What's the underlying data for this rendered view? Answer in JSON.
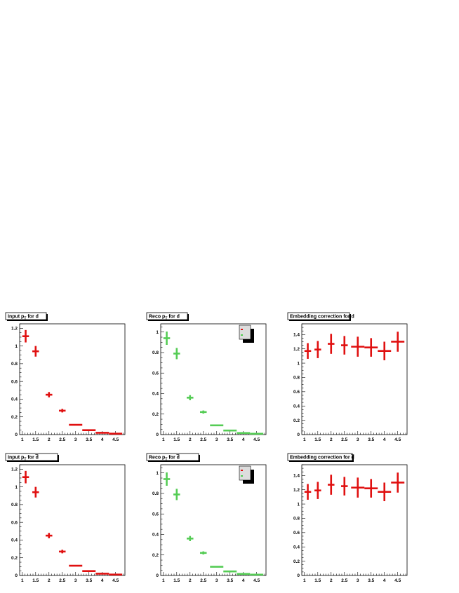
{
  "colors": {
    "red": "#e01010",
    "green": "#55cc55",
    "axis": "#000000",
    "legend_fill": "#dddddd",
    "shadow": "#000000"
  },
  "chart_data": [
    {
      "type": "scatter",
      "title_main": "Input p",
      "title_sub": "T",
      "title_tail": " for d",
      "title_bar": false,
      "color": "red",
      "x": [
        1.125,
        1.5,
        2.0,
        2.5,
        3.0,
        3.5,
        4.0,
        4.5
      ],
      "xerr": [
        0.125,
        0.125,
        0.125,
        0.125,
        0.25,
        0.25,
        0.25,
        0.25
      ],
      "values": [
        1.11,
        0.94,
        0.45,
        0.27,
        0.11,
        0.05,
        0.02,
        0.01
      ],
      "yerr": [
        0.07,
        0.06,
        0.03,
        0.02,
        0.005,
        0.005,
        0.003,
        0.003
      ],
      "xlim": [
        0.9,
        4.85
      ],
      "ylim": [
        0,
        1.25
      ],
      "xticks": [
        "1",
        "1.5",
        "2",
        "2.5",
        "3",
        "3.5",
        "4",
        "4.5"
      ],
      "yticks": [
        "0",
        "0.2",
        "0.4",
        "0.6",
        "0.8",
        "1",
        "1.2"
      ],
      "legend": false
    },
    {
      "type": "scatter",
      "title_main": "Reco p",
      "title_sub": "T",
      "title_tail": " for d",
      "title_bar": false,
      "color": "green",
      "x": [
        1.125,
        1.5,
        2.0,
        2.5,
        3.0,
        3.5,
        4.0,
        4.5
      ],
      "xerr": [
        0.125,
        0.125,
        0.125,
        0.125,
        0.25,
        0.25,
        0.25,
        0.25
      ],
      "values": [
        0.94,
        0.79,
        0.36,
        0.22,
        0.09,
        0.04,
        0.015,
        0.008
      ],
      "yerr": [
        0.065,
        0.055,
        0.025,
        0.015,
        0.005,
        0.004,
        0.003,
        0.002
      ],
      "xlim": [
        0.9,
        4.85
      ],
      "ylim": [
        0,
        1.08
      ],
      "xticks": [
        "1",
        "1.5",
        "2",
        "2.5",
        "3",
        "3.5",
        "4",
        "4.5"
      ],
      "yticks": [
        "0",
        "0.2",
        "0.4",
        "0.6",
        "0.8",
        "1"
      ],
      "legend": true
    },
    {
      "type": "scatter",
      "title_main": "Embedding correction for d",
      "title_sub": "",
      "title_tail": "",
      "title_bar": false,
      "color": "red",
      "x": [
        1.125,
        1.5,
        2.0,
        2.5,
        3.0,
        3.5,
        4.0,
        4.5
      ],
      "xerr": [
        0.125,
        0.125,
        0.125,
        0.125,
        0.25,
        0.25,
        0.25,
        0.25
      ],
      "values": [
        1.17,
        1.19,
        1.27,
        1.25,
        1.23,
        1.22,
        1.17,
        1.3
      ],
      "yerr": [
        0.11,
        0.12,
        0.14,
        0.13,
        0.14,
        0.13,
        0.13,
        0.14
      ],
      "xlim": [
        0.9,
        4.85
      ],
      "ylim": [
        0,
        1.55
      ],
      "xticks": [
        "1",
        "1.5",
        "2",
        "2.5",
        "3",
        "3.5",
        "4",
        "4.5"
      ],
      "yticks": [
        "0",
        "0.2",
        "0.4",
        "0.6",
        "0.8",
        "1",
        "1.2",
        "1.4"
      ],
      "legend": false
    },
    {
      "type": "scatter",
      "title_main": "Input p",
      "title_sub": "T",
      "title_tail": " for d",
      "title_bar": true,
      "color": "red",
      "x": [
        1.125,
        1.5,
        2.0,
        2.5,
        3.0,
        3.5,
        4.0,
        4.5
      ],
      "xerr": [
        0.125,
        0.125,
        0.125,
        0.125,
        0.25,
        0.25,
        0.25,
        0.25
      ],
      "values": [
        1.11,
        0.94,
        0.45,
        0.27,
        0.11,
        0.05,
        0.02,
        0.01
      ],
      "yerr": [
        0.07,
        0.06,
        0.03,
        0.02,
        0.005,
        0.005,
        0.003,
        0.003
      ],
      "xlim": [
        0.9,
        4.85
      ],
      "ylim": [
        0,
        1.25
      ],
      "xticks": [
        "1",
        "1.5",
        "2",
        "2.5",
        "3",
        "3.5",
        "4",
        "4.5"
      ],
      "yticks": [
        "0",
        "0.2",
        "0.4",
        "0.6",
        "0.8",
        "1",
        "1.2"
      ],
      "legend": false
    },
    {
      "type": "scatter",
      "title_main": "Reco p",
      "title_sub": "T",
      "title_tail": " for d",
      "title_bar": true,
      "color": "green",
      "x": [
        1.125,
        1.5,
        2.0,
        2.5,
        3.0,
        3.5,
        4.0,
        4.5
      ],
      "xerr": [
        0.125,
        0.125,
        0.125,
        0.125,
        0.25,
        0.25,
        0.25,
        0.25
      ],
      "values": [
        0.94,
        0.79,
        0.36,
        0.22,
        0.085,
        0.04,
        0.015,
        0.008
      ],
      "yerr": [
        0.065,
        0.055,
        0.025,
        0.015,
        0.005,
        0.004,
        0.003,
        0.002
      ],
      "xlim": [
        0.9,
        4.85
      ],
      "ylim": [
        0,
        1.08
      ],
      "xticks": [
        "1",
        "1.5",
        "2",
        "2.5",
        "3",
        "3.5",
        "4",
        "4.5"
      ],
      "yticks": [
        "0",
        "0.2",
        "0.4",
        "0.6",
        "0.8",
        "1"
      ],
      "legend": true
    },
    {
      "type": "scatter",
      "title_main": "Embedding correction for d",
      "title_sub": "",
      "title_tail": "",
      "title_bar": true,
      "color": "red",
      "x": [
        1.125,
        1.5,
        2.0,
        2.5,
        3.0,
        3.5,
        4.0,
        4.5
      ],
      "xerr": [
        0.125,
        0.125,
        0.125,
        0.125,
        0.25,
        0.25,
        0.25,
        0.25
      ],
      "values": [
        1.17,
        1.19,
        1.27,
        1.25,
        1.23,
        1.22,
        1.17,
        1.3
      ],
      "yerr": [
        0.11,
        0.12,
        0.14,
        0.13,
        0.14,
        0.13,
        0.13,
        0.14
      ],
      "xlim": [
        0.9,
        4.85
      ],
      "ylim": [
        0,
        1.55
      ],
      "xticks": [
        "1",
        "1.5",
        "2",
        "2.5",
        "3",
        "3.5",
        "4",
        "4.5"
      ],
      "yticks": [
        "0",
        "0.2",
        "0.4",
        "0.6",
        "0.8",
        "1",
        "1.2",
        "1.4"
      ],
      "legend": false
    }
  ]
}
